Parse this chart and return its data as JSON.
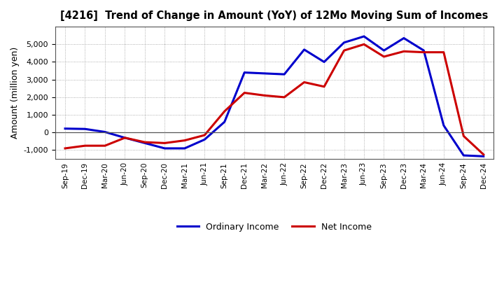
{
  "title": "[4216]  Trend of Change in Amount (YoY) of 12Mo Moving Sum of Incomes",
  "ylabel": "Amount (million yen)",
  "x_labels": [
    "Sep-19",
    "Dec-19",
    "Mar-20",
    "Jun-20",
    "Sep-20",
    "Dec-20",
    "Mar-21",
    "Jun-21",
    "Sep-21",
    "Dec-21",
    "Mar-22",
    "Jun-22",
    "Sep-22",
    "Dec-22",
    "Mar-23",
    "Jun-23",
    "Sep-23",
    "Dec-23",
    "Mar-24",
    "Jun-24",
    "Sep-24",
    "Dec-24"
  ],
  "ordinary_income": [
    220,
    200,
    30,
    -300,
    -600,
    -900,
    -900,
    -400,
    600,
    3400,
    3350,
    3300,
    4700,
    4000,
    5100,
    5450,
    4650,
    5350,
    4650,
    400,
    -1300,
    -1350
  ],
  "net_income": [
    -900,
    -750,
    -750,
    -300,
    -550,
    -600,
    -450,
    -150,
    1200,
    2250,
    2100,
    2000,
    2850,
    2600,
    4650,
    5000,
    4300,
    4600,
    4550,
    4550,
    -200,
    -1250
  ],
  "ordinary_income_color": "#0000cc",
  "net_income_color": "#cc0000",
  "ylim": [
    -1500,
    6000
  ],
  "yticks": [
    -1000,
    0,
    1000,
    2000,
    3000,
    4000,
    5000
  ],
  "background_color": "#ffffff",
  "plot_bg_color": "#ffffff",
  "grid_color": "#999999",
  "legend_labels": [
    "Ordinary Income",
    "Net Income"
  ]
}
